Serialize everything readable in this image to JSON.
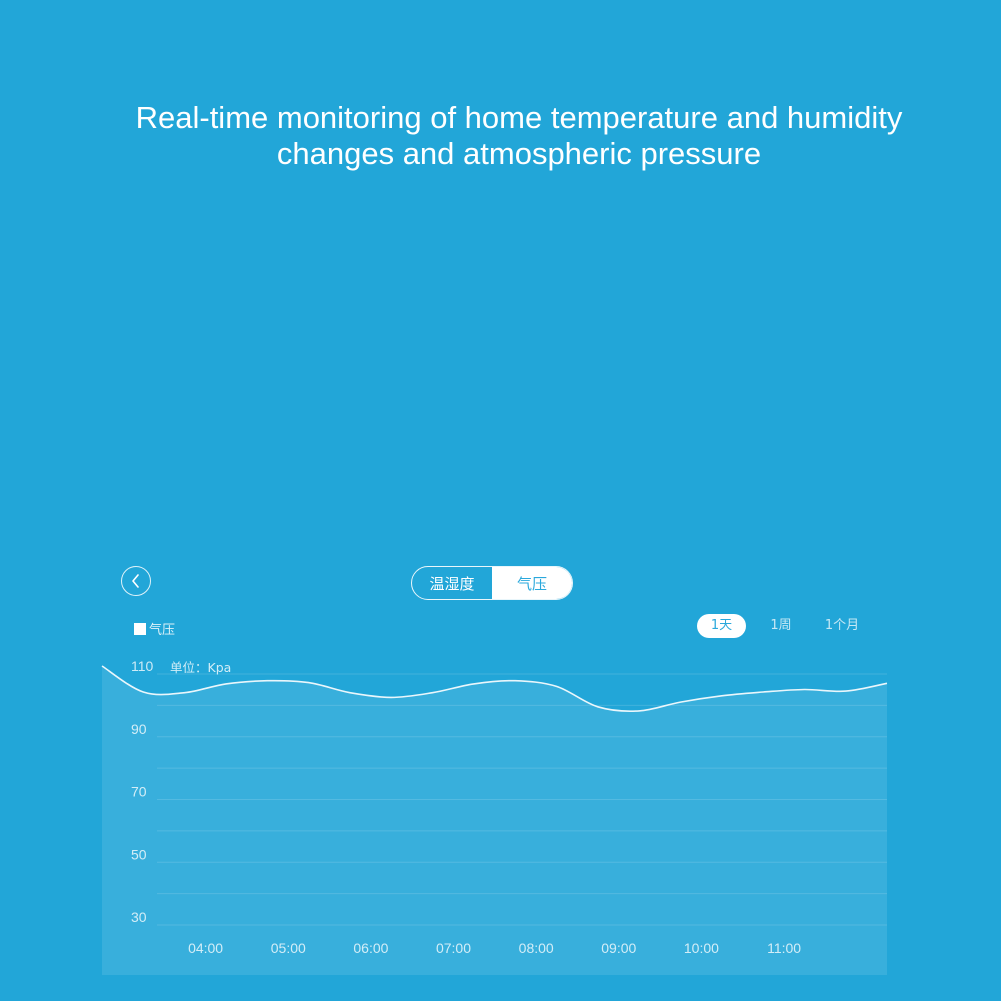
{
  "headline": {
    "line1": "Real-time monitoring of home temperature and humidity",
    "line2": "changes and atmospheric pressure"
  },
  "nav": {
    "back_icon": "chevron-left-icon"
  },
  "tabs": [
    {
      "label": "温湿度",
      "active": false
    },
    {
      "label": "气压",
      "active": true
    }
  ],
  "legend": {
    "label": "气压"
  },
  "range_tabs": [
    {
      "label": "1天",
      "active": true
    },
    {
      "label": "1周",
      "active": false
    },
    {
      "label": "1个月",
      "active": false
    }
  ],
  "unit_label": "单位：Kpa",
  "colors": {
    "background": "#22a6d8",
    "line": "#ffffff",
    "active_text": "#2aa8dc"
  },
  "chart_data": {
    "type": "area",
    "ylabel": "单位：Kpa",
    "yticks": [
      110,
      90,
      70,
      50,
      30
    ],
    "ylim": [
      30,
      110
    ],
    "categories": [
      "04:00",
      "05:00",
      "06:00",
      "07:00",
      "08:00",
      "09:00",
      "10:00",
      "11:00"
    ],
    "series": [
      {
        "name": "气压",
        "x": [
          3.0,
          3.5,
          4.0,
          4.5,
          5.0,
          5.5,
          6.0,
          6.5,
          7.0,
          7.5,
          8.0,
          8.5,
          9.0,
          9.5,
          10.0,
          10.5,
          11.0,
          11.5,
          12.0,
          12.5
        ],
        "values": [
          110,
          101.7,
          101.5,
          104.3,
          105.3,
          104.7,
          101.5,
          100,
          101.5,
          104.3,
          105.3,
          103.5,
          97,
          95.7,
          98.5,
          100.5,
          101.7,
          102.5,
          102,
          104.5
        ]
      }
    ],
    "grid": true,
    "legend": "top-left"
  }
}
